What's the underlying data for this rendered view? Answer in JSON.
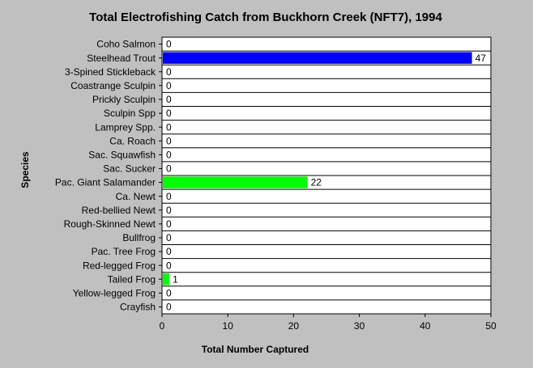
{
  "chart_data": {
    "type": "barh",
    "title": "Total Electrofishing Catch from Buckhorn Creek (NFT7), 1994",
    "xlabel": "Total Number Captured",
    "ylabel": "Species",
    "categories": [
      "Coho Salmon",
      "Steelhead Trout",
      "3-Spined Stickleback",
      "Coastrange Sculpin",
      "Prickly Sculpin",
      "Sculpin Spp",
      "Lamprey Spp.",
      "Ca. Roach",
      "Sac. Squawfish",
      "Sac. Sucker",
      "Pac. Giant Salamander",
      "Ca. Newt",
      "Red-bellied Newt",
      "Rough-Skinned Newt",
      "Bullfrog",
      "Pac. Tree Frog",
      "Red-legged Frog",
      "Tailed Frog",
      "Yellow-legged Frog",
      "Crayfish"
    ],
    "values": [
      0,
      47,
      0,
      0,
      0,
      0,
      0,
      0,
      0,
      0,
      22,
      0,
      0,
      0,
      0,
      0,
      0,
      1,
      0,
      0
    ],
    "colors": [
      "#0000ff",
      "#0000ff",
      "#00ff00",
      "#00ff00",
      "#00ff00",
      "#00ff00",
      "#00ff00",
      "#00ff00",
      "#00ff00",
      "#00ff00",
      "#00ff00",
      "#00ff00",
      "#00ff00",
      "#00ff00",
      "#00ff00",
      "#00ff00",
      "#00ff00",
      "#00ff00",
      "#00ff00",
      "#00ff00"
    ],
    "xlim": [
      0,
      50
    ],
    "xticks": [
      0,
      10,
      20,
      30,
      40,
      50
    ]
  }
}
